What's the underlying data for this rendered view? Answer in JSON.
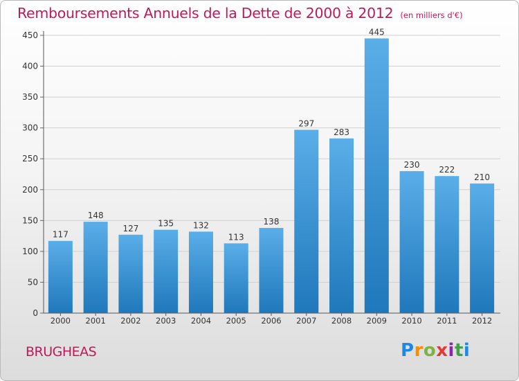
{
  "page": {
    "title": "Remboursements Annuels de la Dette de 2000 à 2012",
    "unit_note": "(en milliers d'€)",
    "commune": "BRUGHEAS",
    "logo": {
      "p": "P",
      "r": "r",
      "o": "o",
      "x": "x",
      "i": "i",
      "t": "t",
      "i2": "i"
    }
  },
  "colors": {
    "bar_top": "#5aaee8",
    "bar_bottom": "#1f78bb",
    "title": "#c2185b",
    "grid": "#d0d0d0"
  },
  "chart_data": {
    "type": "bar",
    "title": "Remboursements Annuels de la Dette de 2000 à 2012",
    "xlabel": "",
    "ylabel": "",
    "ylim": [
      0,
      450
    ],
    "yticks": [
      0,
      50,
      100,
      150,
      200,
      250,
      300,
      350,
      400,
      450
    ],
    "grid": true,
    "categories": [
      "2000",
      "2001",
      "2002",
      "2003",
      "2004",
      "2005",
      "2006",
      "2007",
      "2008",
      "2009",
      "2010",
      "2011",
      "2012"
    ],
    "values": [
      117,
      148,
      127,
      135,
      132,
      113,
      138,
      297,
      283,
      445,
      230,
      222,
      210
    ]
  }
}
